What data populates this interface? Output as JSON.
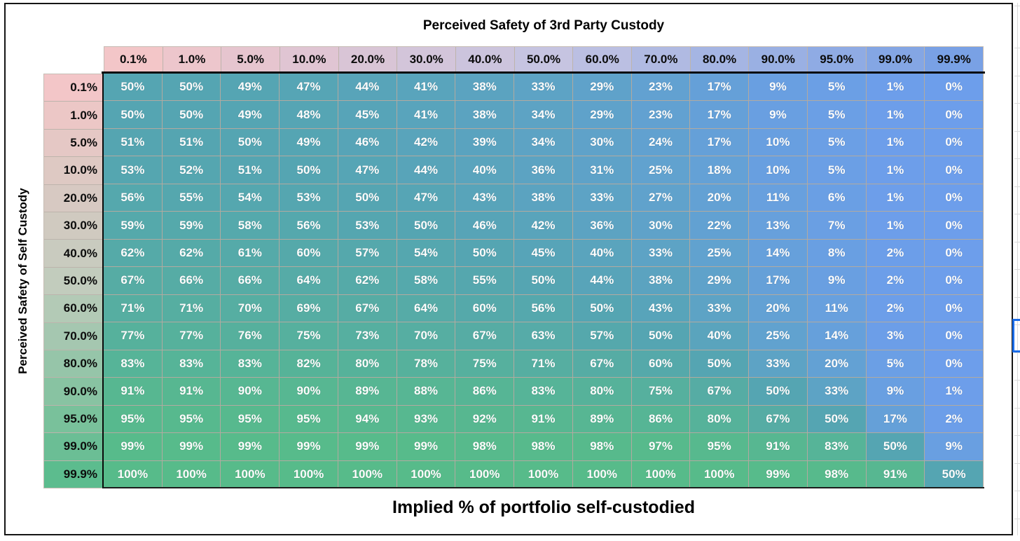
{
  "titles": {
    "top": "Perceived Safety of 3rd Party Custody",
    "left": "Perceived Safety of Self Custody",
    "bottom": "Implied % of portfolio self-custodied"
  },
  "table": {
    "column_headers": [
      "0.1%",
      "1.0%",
      "5.0%",
      "10.0%",
      "20.0%",
      "30.0%",
      "40.0%",
      "50.0%",
      "60.0%",
      "70.0%",
      "80.0%",
      "90.0%",
      "95.0%",
      "99.0%",
      "99.9%"
    ],
    "row_headers": [
      "0.1%",
      "1.0%",
      "5.0%",
      "10.0%",
      "20.0%",
      "30.0%",
      "40.0%",
      "50.0%",
      "60.0%",
      "70.0%",
      "80.0%",
      "90.0%",
      "95.0%",
      "99.0%",
      "99.9%"
    ],
    "cells": [
      [
        "50%",
        "50%",
        "49%",
        "47%",
        "44%",
        "41%",
        "38%",
        "33%",
        "29%",
        "23%",
        "17%",
        "9%",
        "5%",
        "1%",
        "0%"
      ],
      [
        "50%",
        "50%",
        "49%",
        "48%",
        "45%",
        "41%",
        "38%",
        "34%",
        "29%",
        "23%",
        "17%",
        "9%",
        "5%",
        "1%",
        "0%"
      ],
      [
        "51%",
        "51%",
        "50%",
        "49%",
        "46%",
        "42%",
        "39%",
        "34%",
        "30%",
        "24%",
        "17%",
        "10%",
        "5%",
        "1%",
        "0%"
      ],
      [
        "53%",
        "52%",
        "51%",
        "50%",
        "47%",
        "44%",
        "40%",
        "36%",
        "31%",
        "25%",
        "18%",
        "10%",
        "5%",
        "1%",
        "0%"
      ],
      [
        "56%",
        "55%",
        "54%",
        "53%",
        "50%",
        "47%",
        "43%",
        "38%",
        "33%",
        "27%",
        "20%",
        "11%",
        "6%",
        "1%",
        "0%"
      ],
      [
        "59%",
        "59%",
        "58%",
        "56%",
        "53%",
        "50%",
        "46%",
        "42%",
        "36%",
        "30%",
        "22%",
        "13%",
        "7%",
        "1%",
        "0%"
      ],
      [
        "62%",
        "62%",
        "61%",
        "60%",
        "57%",
        "54%",
        "50%",
        "45%",
        "40%",
        "33%",
        "25%",
        "14%",
        "8%",
        "2%",
        "0%"
      ],
      [
        "67%",
        "66%",
        "66%",
        "64%",
        "62%",
        "58%",
        "55%",
        "50%",
        "44%",
        "38%",
        "29%",
        "17%",
        "9%",
        "2%",
        "0%"
      ],
      [
        "71%",
        "71%",
        "70%",
        "69%",
        "67%",
        "64%",
        "60%",
        "56%",
        "50%",
        "43%",
        "33%",
        "20%",
        "11%",
        "2%",
        "0%"
      ],
      [
        "77%",
        "77%",
        "76%",
        "75%",
        "73%",
        "70%",
        "67%",
        "63%",
        "57%",
        "50%",
        "40%",
        "25%",
        "14%",
        "3%",
        "0%"
      ],
      [
        "83%",
        "83%",
        "83%",
        "82%",
        "80%",
        "78%",
        "75%",
        "71%",
        "67%",
        "60%",
        "50%",
        "33%",
        "20%",
        "5%",
        "0%"
      ],
      [
        "91%",
        "91%",
        "90%",
        "90%",
        "89%",
        "88%",
        "86%",
        "83%",
        "80%",
        "75%",
        "67%",
        "50%",
        "33%",
        "9%",
        "1%"
      ],
      [
        "95%",
        "95%",
        "95%",
        "95%",
        "94%",
        "93%",
        "92%",
        "91%",
        "89%",
        "86%",
        "80%",
        "67%",
        "50%",
        "17%",
        "2%"
      ],
      [
        "99%",
        "99%",
        "99%",
        "99%",
        "99%",
        "99%",
        "98%",
        "98%",
        "98%",
        "97%",
        "95%",
        "91%",
        "83%",
        "50%",
        "9%"
      ],
      [
        "100%",
        "100%",
        "100%",
        "100%",
        "100%",
        "100%",
        "100%",
        "100%",
        "100%",
        "100%",
        "100%",
        "99%",
        "98%",
        "91%",
        "50%"
      ]
    ]
  },
  "chart_data": {
    "type": "heatmap",
    "title": "Implied % of portfolio self-custodied",
    "xlabel": "Perceived Safety of 3rd Party Custody",
    "ylabel": "Perceived Safety of Self Custody",
    "x": [
      0.1,
      1.0,
      5.0,
      10.0,
      20.0,
      30.0,
      40.0,
      50.0,
      60.0,
      70.0,
      80.0,
      90.0,
      95.0,
      99.0,
      99.9
    ],
    "y": [
      0.1,
      1.0,
      5.0,
      10.0,
      20.0,
      30.0,
      40.0,
      50.0,
      60.0,
      70.0,
      80.0,
      90.0,
      95.0,
      99.0,
      99.9
    ],
    "values": [
      [
        50,
        50,
        49,
        47,
        44,
        41,
        38,
        33,
        29,
        23,
        17,
        9,
        5,
        1,
        0
      ],
      [
        50,
        50,
        49,
        48,
        45,
        41,
        38,
        34,
        29,
        23,
        17,
        9,
        5,
        1,
        0
      ],
      [
        51,
        51,
        50,
        49,
        46,
        42,
        39,
        34,
        30,
        24,
        17,
        10,
        5,
        1,
        0
      ],
      [
        53,
        52,
        51,
        50,
        47,
        44,
        40,
        36,
        31,
        25,
        18,
        10,
        5,
        1,
        0
      ],
      [
        56,
        55,
        54,
        53,
        50,
        47,
        43,
        38,
        33,
        27,
        20,
        11,
        6,
        1,
        0
      ],
      [
        59,
        59,
        58,
        56,
        53,
        50,
        46,
        42,
        36,
        30,
        22,
        13,
        7,
        1,
        0
      ],
      [
        62,
        62,
        61,
        60,
        57,
        54,
        50,
        45,
        40,
        33,
        25,
        14,
        8,
        2,
        0
      ],
      [
        67,
        66,
        66,
        64,
        62,
        58,
        55,
        50,
        44,
        38,
        29,
        17,
        9,
        2,
        0
      ],
      [
        71,
        71,
        70,
        69,
        67,
        64,
        60,
        56,
        50,
        43,
        33,
        20,
        11,
        2,
        0
      ],
      [
        77,
        77,
        76,
        75,
        73,
        70,
        67,
        63,
        57,
        50,
        40,
        25,
        14,
        3,
        0
      ],
      [
        83,
        83,
        83,
        82,
        80,
        78,
        75,
        71,
        67,
        60,
        50,
        33,
        20,
        5,
        0
      ],
      [
        91,
        91,
        90,
        90,
        89,
        88,
        86,
        83,
        80,
        75,
        67,
        50,
        33,
        9,
        1
      ],
      [
        95,
        95,
        95,
        95,
        94,
        93,
        92,
        91,
        89,
        86,
        80,
        67,
        50,
        17,
        2
      ],
      [
        99,
        99,
        99,
        99,
        99,
        99,
        98,
        98,
        98,
        97,
        95,
        91,
        83,
        50,
        9
      ],
      [
        100,
        100,
        100,
        100,
        100,
        100,
        100,
        100,
        100,
        100,
        100,
        99,
        98,
        91,
        50
      ]
    ],
    "value_range": [
      0,
      100
    ],
    "colorscale": {
      "0": "#6D9EEB",
      "50": "#55A5B2",
      "100": "#57BB8A"
    }
  },
  "colors": {
    "cell_scale": {
      "min": "#6D9EEB",
      "mid": "#55A5B2",
      "max": "#57BB8A"
    },
    "col_header_scale": {
      "min": "#F3C6C8",
      "mid": "#C6C4E1",
      "max": "#79A1E5"
    },
    "row_header_scale": {
      "min": "#F3C6C8",
      "mid": "#C2CCBD",
      "max": "#5CBC8E"
    },
    "selection_blue": "#1a6ce8",
    "cell_text": "#ffffff",
    "header_text": "#000000",
    "frame_border": "#151515"
  }
}
